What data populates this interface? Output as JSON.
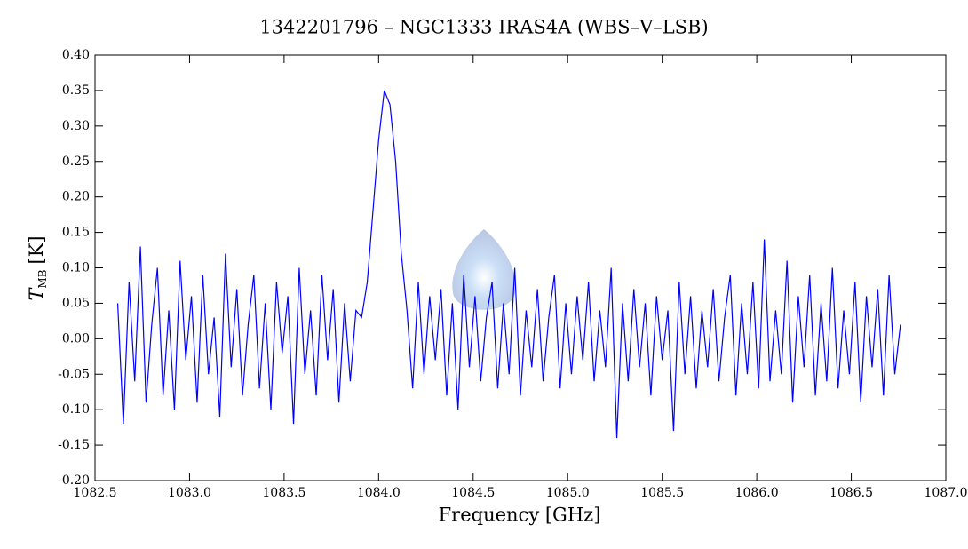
{
  "chart_data": {
    "type": "line",
    "title": "1342201796 – NGC1333 IRAS4A (WBS–V–LSB)",
    "x_label": "Frequency [GHz]",
    "y_label": {
      "symbol": "T",
      "subscript": "MB",
      "unit": "[K]"
    },
    "xlim": [
      1082.5,
      1087.0
    ],
    "ylim": [
      -0.2,
      0.4
    ],
    "xticks": [
      1082.5,
      {
        "value": 1083,
        "label": "1083.0"
      },
      1083.5,
      {
        "value": 1084,
        "label": "1084.0"
      },
      1084.5,
      {
        "value": 1085,
        "label": "1085.0"
      },
      1085.5,
      {
        "value": 1086,
        "label": "1086.0"
      },
      1086.5,
      {
        "value": 1087,
        "label": "1087.0"
      }
    ],
    "yticks": [
      {
        "value": 0.4,
        "label": "0.40"
      },
      0.35,
      {
        "value": 0.3,
        "label": "0.30"
      },
      0.25,
      {
        "value": 0.2,
        "label": "0.20"
      },
      0.15,
      {
        "value": 0.1,
        "label": "0.10"
      },
      0.05,
      {
        "value": 0,
        "label": "0.00"
      },
      -0.05,
      {
        "value": -0.1,
        "label": "-0.10"
      },
      -0.15,
      {
        "value": -0.2,
        "label": "-0.20"
      }
    ],
    "grid": false,
    "x": [
      1082.62,
      1082.65,
      1082.68,
      1082.71,
      1082.74,
      1082.77,
      1082.8,
      1082.83,
      1082.86,
      1082.89,
      1082.92,
      1082.95,
      1082.98,
      1083.01,
      1083.04,
      1083.07,
      1083.1,
      1083.13,
      1083.16,
      1083.19,
      1083.22,
      1083.25,
      1083.28,
      1083.31,
      1083.34,
      1083.37,
      1083.4,
      1083.43,
      1083.46,
      1083.49,
      1083.52,
      1083.55,
      1083.58,
      1083.61,
      1083.64,
      1083.67,
      1083.7,
      1083.73,
      1083.76,
      1083.79,
      1083.82,
      1083.85,
      1083.88,
      1083.91,
      1083.94,
      1083.97,
      1084.0,
      1084.03,
      1084.06,
      1084.09,
      1084.12,
      1084.15,
      1084.18,
      1084.21,
      1084.24,
      1084.27,
      1084.3,
      1084.33,
      1084.36,
      1084.39,
      1084.42,
      1084.45,
      1084.48,
      1084.51,
      1084.54,
      1084.57,
      1084.6,
      1084.63,
      1084.66,
      1084.69,
      1084.72,
      1084.75,
      1084.78,
      1084.81,
      1084.84,
      1084.87,
      1084.9,
      1084.93,
      1084.96,
      1084.99,
      1085.02,
      1085.05,
      1085.08,
      1085.11,
      1085.14,
      1085.17,
      1085.2,
      1085.23,
      1085.26,
      1085.29,
      1085.32,
      1085.35,
      1085.38,
      1085.41,
      1085.44,
      1085.47,
      1085.5,
      1085.53,
      1085.56,
      1085.59,
      1085.62,
      1085.65,
      1085.68,
      1085.71,
      1085.74,
      1085.77,
      1085.8,
      1085.83,
      1085.86,
      1085.89,
      1085.92,
      1085.95,
      1085.98,
      1086.01,
      1086.04,
      1086.07,
      1086.1,
      1086.13,
      1086.16,
      1086.19,
      1086.22,
      1086.25,
      1086.28,
      1086.31,
      1086.34,
      1086.37,
      1086.4,
      1086.43,
      1086.46,
      1086.49,
      1086.52,
      1086.55,
      1086.58,
      1086.61,
      1086.64,
      1086.67,
      1086.7,
      1086.73,
      1086.76
    ],
    "series": [
      {
        "color": "#0000ff",
        "values": [
          0.05,
          -0.12,
          0.08,
          -0.06,
          0.13,
          -0.09,
          0.02,
          0.1,
          -0.08,
          0.04,
          -0.1,
          0.11,
          -0.03,
          0.06,
          -0.09,
          0.09,
          -0.05,
          0.03,
          -0.11,
          0.12,
          -0.04,
          0.07,
          -0.08,
          0.02,
          0.09,
          -0.07,
          0.05,
          -0.1,
          0.08,
          -0.02,
          0.06,
          -0.12,
          0.1,
          -0.05,
          0.04,
          -0.08,
          0.09,
          -0.03,
          0.07,
          -0.09,
          0.05,
          -0.06,
          0.04,
          0.03,
          0.08,
          0.18,
          0.28,
          0.35,
          0.33,
          0.25,
          0.12,
          0.04,
          -0.07,
          0.08,
          -0.05,
          0.06,
          -0.03,
          0.07,
          -0.08,
          0.05,
          -0.1,
          0.09,
          -0.04,
          0.06,
          -0.06,
          0.03,
          0.08,
          -0.07,
          0.05,
          -0.05,
          0.1,
          -0.08,
          0.04,
          -0.04,
          0.07,
          -0.06,
          0.03,
          0.09,
          -0.07,
          0.05,
          -0.05,
          0.06,
          -0.03,
          0.08,
          -0.06,
          0.04,
          -0.04,
          0.1,
          -0.14,
          0.05,
          -0.06,
          0.07,
          -0.04,
          0.05,
          -0.08,
          0.06,
          -0.03,
          0.04,
          -0.13,
          0.08,
          -0.05,
          0.06,
          -0.07,
          0.04,
          -0.04,
          0.07,
          -0.06,
          0.03,
          0.09,
          -0.08,
          0.05,
          -0.05,
          0.08,
          -0.07,
          0.14,
          -0.06,
          0.04,
          -0.05,
          0.11,
          -0.09,
          0.06,
          -0.04,
          0.09,
          -0.08,
          0.05,
          -0.06,
          0.1,
          -0.07,
          0.04,
          -0.05,
          0.08,
          -0.09,
          0.06,
          -0.04,
          0.07,
          -0.08,
          0.09,
          -0.05,
          0.02
        ]
      }
    ]
  }
}
